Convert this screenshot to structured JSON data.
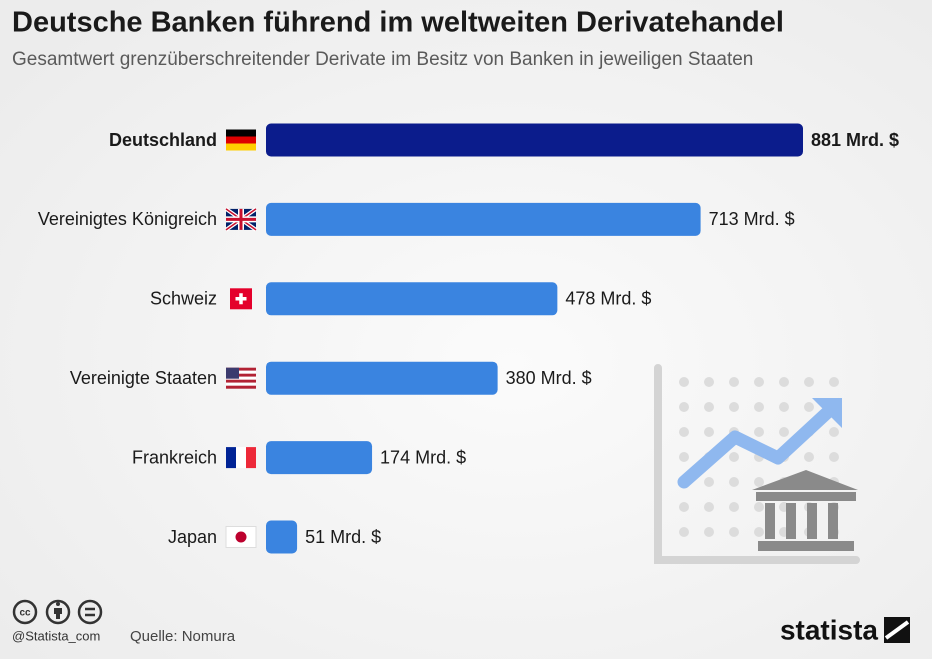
{
  "chart_data": {
    "type": "bar",
    "orientation": "horizontal",
    "title": "Deutsche Banken führend im weltweiten Derivatehandel",
    "subtitle": "Gesamtwert grenzüberschreitender Derivate im Besitz von Banken in jeweiligen Staaten",
    "categories": [
      "Deutschland",
      "Vereinigtes Königreich",
      "Schweiz",
      "Vereinigte Staaten",
      "Frankreich",
      "Japan"
    ],
    "values": [
      881,
      713,
      478,
      380,
      174,
      51
    ],
    "value_labels": [
      "881 Mrd. $",
      "713 Mrd. $",
      "478 Mrd. $",
      "380 Mrd. $",
      "174 Mrd. $",
      "51 Mrd. $"
    ],
    "colors": [
      "#0b1c8c",
      "#3a84e0",
      "#3a84e0",
      "#3a84e0",
      "#3a84e0",
      "#3a84e0"
    ],
    "handle": "@Statista_com",
    "source": "Quelle: Nomura",
    "brand": "statista"
  }
}
